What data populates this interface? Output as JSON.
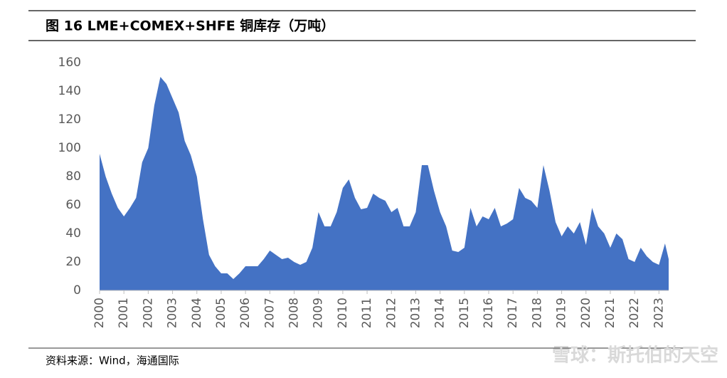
{
  "chart_data": {
    "type": "area",
    "title": "图 16 LME+COMEX+SHFE 铜库存（万吨）",
    "source": "资料来源：Wind，海通国际",
    "watermark": "雪球：斯托伯的天空",
    "color": "#4472c4",
    "x": [
      2000.0,
      2000.25,
      2000.5,
      2000.75,
      2001.0,
      2001.25,
      2001.5,
      2001.75,
      2002.0,
      2002.25,
      2002.5,
      2002.75,
      2003.0,
      2003.25,
      2003.5,
      2003.75,
      2004.0,
      2004.25,
      2004.5,
      2004.75,
      2005.0,
      2005.25,
      2005.5,
      2005.75,
      2006.0,
      2006.25,
      2006.5,
      2006.75,
      2007.0,
      2007.25,
      2007.5,
      2007.75,
      2008.0,
      2008.25,
      2008.5,
      2008.75,
      2009.0,
      2009.25,
      2009.5,
      2009.75,
      2010.0,
      2010.25,
      2010.5,
      2010.75,
      2011.0,
      2011.25,
      2011.5,
      2011.75,
      2012.0,
      2012.25,
      2012.5,
      2012.75,
      2013.0,
      2013.25,
      2013.5,
      2013.75,
      2014.0,
      2014.25,
      2014.5,
      2014.75,
      2015.0,
      2015.25,
      2015.5,
      2015.75,
      2016.0,
      2016.25,
      2016.5,
      2016.75,
      2017.0,
      2017.25,
      2017.5,
      2017.75,
      2018.0,
      2018.25,
      2018.5,
      2018.75,
      2019.0,
      2019.25,
      2019.5,
      2019.75,
      2020.0,
      2020.25,
      2020.5,
      2020.75,
      2021.0,
      2021.25,
      2021.5,
      2021.75,
      2022.0,
      2022.25,
      2022.5,
      2022.75,
      2023.0,
      2023.25,
      2023.4
    ],
    "values": [
      96,
      80,
      68,
      58,
      52,
      58,
      65,
      90,
      100,
      130,
      150,
      145,
      135,
      125,
      105,
      95,
      80,
      50,
      25,
      17,
      12,
      12,
      8,
      12,
      17,
      17,
      17,
      22,
      28,
      25,
      22,
      23,
      20,
      18,
      20,
      30,
      55,
      45,
      45,
      55,
      72,
      78,
      65,
      57,
      58,
      68,
      65,
      63,
      55,
      58,
      45,
      45,
      55,
      88,
      88,
      70,
      55,
      45,
      28,
      27,
      30,
      58,
      45,
      52,
      50,
      58,
      45,
      47,
      50,
      72,
      65,
      63,
      58,
      88,
      70,
      48,
      38,
      45,
      40,
      48,
      32,
      58,
      45,
      40,
      30,
      40,
      36,
      22,
      20,
      30,
      24,
      20,
      18,
      33,
      22
    ],
    "xlim": [
      2000,
      2023.4
    ],
    "xticks": [
      2000,
      2001,
      2002,
      2003,
      2004,
      2005,
      2006,
      2007,
      2008,
      2009,
      2010,
      2011,
      2012,
      2013,
      2014,
      2015,
      2016,
      2017,
      2018,
      2019,
      2020,
      2021,
      2022,
      2023
    ],
    "ylim": [
      0,
      160
    ],
    "yticks": [
      0,
      20,
      40,
      60,
      80,
      100,
      120,
      140,
      160
    ]
  }
}
